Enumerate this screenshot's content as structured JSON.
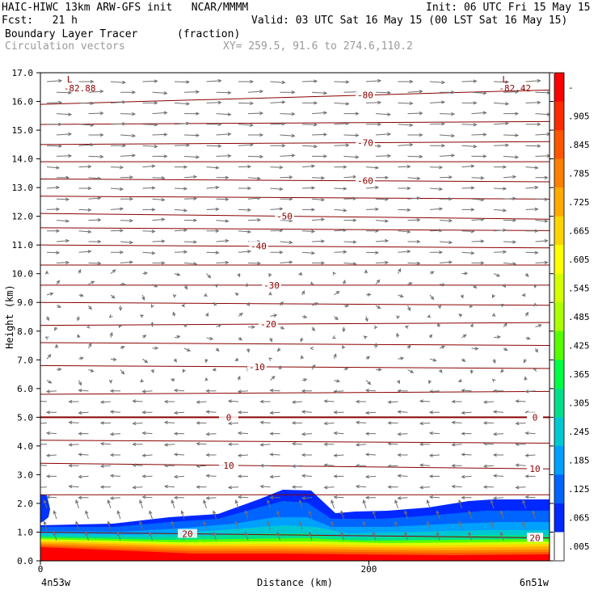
{
  "header": {
    "title_left": "HAIC-HIWC 13km ARW-GFS init   NCAR/MMMM",
    "init": "Init: 06 UTC Fri 15 May 15",
    "fcst": "Fcst:   21 h",
    "valid": "Valid: 03 UTC Sat 16 May 15 (00 LST Sat 16 May 15)",
    "field": "Boundary Layer Tracer",
    "field_unit": "(fraction)",
    "vectors": "Circulation vectors",
    "xy": "XY= 259.5, 91.6 to 274.6,110.2"
  },
  "chart_data": {
    "type": "heatmap",
    "xlabel": "Distance (km)",
    "ylabel": "Height (km)",
    "x_start_label": "4n53w",
    "x_end_label": "6n51w",
    "xlim": [
      0,
      310
    ],
    "ylim": [
      0,
      17
    ],
    "x_ticks": [
      "0",
      "200"
    ],
    "y_ticks": [
      "0.0",
      "1.0",
      "2.0",
      "3.0",
      "4.0",
      "5.0",
      "6.0",
      "7.0",
      "8.0",
      "9.0",
      "10.0",
      "11.0",
      "12.0",
      "13.0",
      "14.0",
      "15.0",
      "16.0",
      "17.0"
    ],
    "colorbar_labels": [
      "-",
      ".905",
      ".845",
      ".785",
      ".725",
      ".665",
      ".605",
      ".545",
      ".485",
      ".425",
      ".365",
      ".305",
      ".245",
      ".185",
      ".125",
      ".065",
      ".005"
    ],
    "colorbar_colors": [
      "#ff0000",
      "#ff2a00",
      "#ff5500",
      "#ff7f00",
      "#ffaa00",
      "#ffd400",
      "#ffff00",
      "#d4ff00",
      "#aaff00",
      "#55ff00",
      "#00ff44",
      "#00e08a",
      "#00c8d2",
      "#00a0ff",
      "#0064ff",
      "#0028ff",
      "#ffffff"
    ],
    "temperature_contours": [
      {
        "label": "-80",
        "y_start": 15.9,
        "y_end": 16.4
      },
      {
        "label": "",
        "y_start": 15.2,
        "y_end": 15.3
      },
      {
        "label": "-70",
        "y_start": 14.5,
        "y_end": 14.6
      },
      {
        "label": "",
        "y_start": 13.9,
        "y_end": 13.9
      },
      {
        "label": "-60",
        "y_start": 13.3,
        "y_end": 13.2
      },
      {
        "label": "",
        "y_start": 12.7,
        "y_end": 12.6
      },
      {
        "label": "-50",
        "y_start": 12.1,
        "y_end": 11.9
      },
      {
        "label": "",
        "y_start": 11.6,
        "y_end": 11.5
      },
      {
        "label": "-40",
        "y_start": 11.0,
        "y_end": 10.9
      },
      {
        "label": "",
        "y_start": 10.3,
        "y_end": 10.3
      },
      {
        "label": "-30",
        "y_start": 9.6,
        "y_end": 9.6
      },
      {
        "label": "",
        "y_start": 9.0,
        "y_end": 8.9
      },
      {
        "label": "-20",
        "y_start": 8.2,
        "y_end": 8.3
      },
      {
        "label": "",
        "y_start": 7.6,
        "y_end": 7.5
      },
      {
        "label": "-10",
        "y_start": 6.8,
        "y_end": 6.7
      },
      {
        "label": "",
        "y_start": 5.8,
        "y_end": 5.9
      },
      {
        "label": "0",
        "y_start": 5.0,
        "y_end": 5.0
      },
      {
        "label": "",
        "y_start": 4.2,
        "y_end": 4.1
      },
      {
        "label": "10",
        "y_start": 3.4,
        "y_end": 3.2
      },
      {
        "label": "",
        "y_start": 2.3,
        "y_end": 2.3
      },
      {
        "label": "20",
        "y_start": 1.0,
        "y_end": 0.8
      }
    ],
    "extrema_labels": [
      {
        "text": "L",
        "value": "-82.88",
        "x": 25,
        "y": 16.6
      },
      {
        "text": "L",
        "value": "-82.42",
        "x": 290,
        "y": 16.6
      }
    ]
  }
}
